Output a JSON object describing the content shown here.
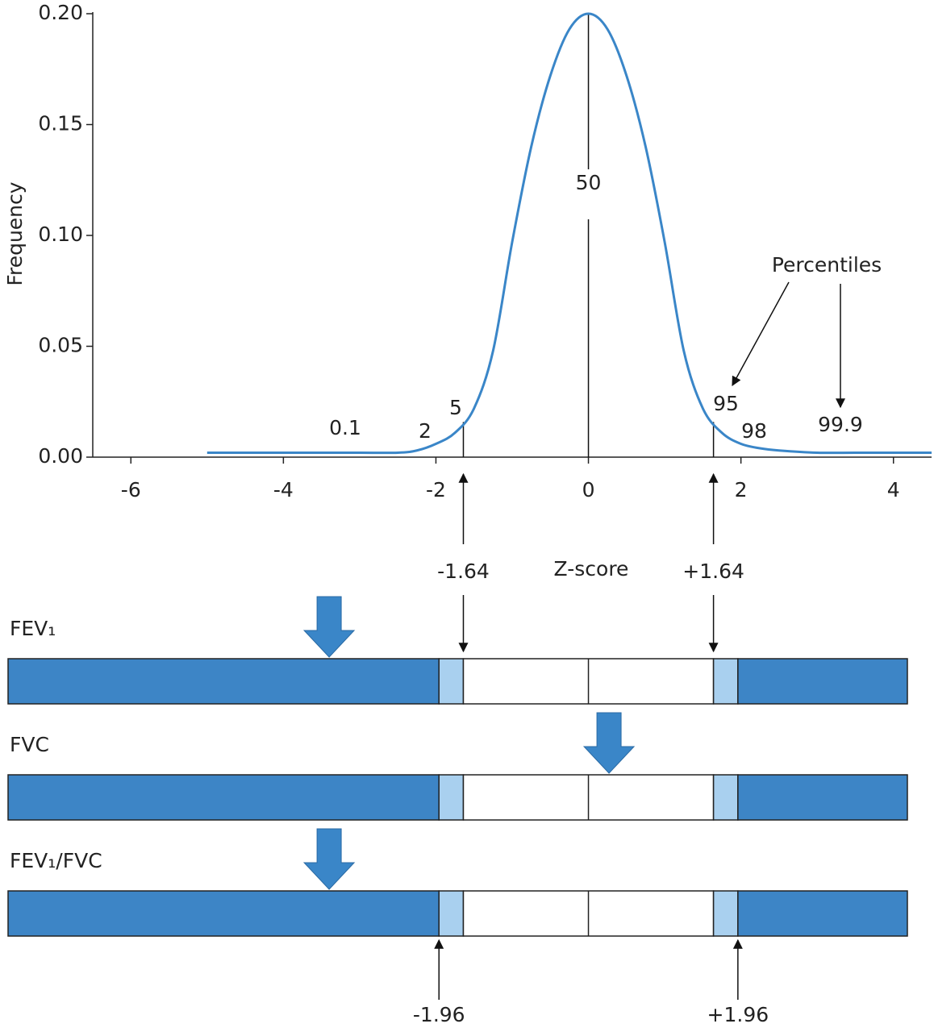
{
  "chart_data": {
    "type": "line",
    "ylabel": "Frequency",
    "xlabel": "Z-score",
    "color": "#3a86c8",
    "x": [
      -5,
      -4.5,
      -4,
      -3.5,
      -3,
      -2.5,
      -2.25,
      -2,
      -1.75,
      -1.5,
      -1.25,
      -1,
      -0.75,
      -0.5,
      -0.25,
      0,
      0.25,
      0.5,
      0.75,
      1,
      1.25,
      1.5,
      1.75,
      2,
      2.25,
      2.5,
      3,
      3.5,
      4,
      4.5
    ],
    "values": [
      0.002,
      0.002,
      0.002,
      0.002,
      0.002,
      0.002,
      0.003,
      0.006,
      0.011,
      0.022,
      0.048,
      0.097,
      0.14,
      0.172,
      0.193,
      0.2,
      0.193,
      0.172,
      0.14,
      0.097,
      0.048,
      0.022,
      0.011,
      0.006,
      0.004,
      0.003,
      0.002,
      0.002,
      0.002,
      0.002
    ],
    "xlim": [
      -6.5,
      4.5
    ],
    "ylim": [
      0,
      0.2
    ],
    "xticks": [
      -6,
      -4,
      -2,
      0,
      2,
      4
    ],
    "yticks": [
      {
        "value": 0,
        "label": "0.00"
      },
      0.05,
      {
        "value": 0.1,
        "label": "0.10"
      },
      0.15,
      {
        "value": 0.2,
        "label": "0.20"
      }
    ],
    "percentiles": {
      "title": "Percentiles",
      "labels": [
        "0.1",
        "2",
        "5",
        "50",
        "95",
        "98",
        "99.9"
      ]
    },
    "cutoffs": [
      {
        "value": -1.64,
        "label": "-1.64"
      },
      {
        "value": 1.64,
        "label": "+1.64"
      }
    ],
    "limits": [
      {
        "value": -1.96,
        "label": "-1.96"
      },
      {
        "value": 1.96,
        "label": "+1.96"
      }
    ],
    "rows": [
      {
        "label": "FEV₁",
        "z": -3.4
      },
      {
        "label": "FVC",
        "z": 0.27
      },
      {
        "label": "FEV₁/FVC",
        "z": -3.4
      }
    ]
  }
}
